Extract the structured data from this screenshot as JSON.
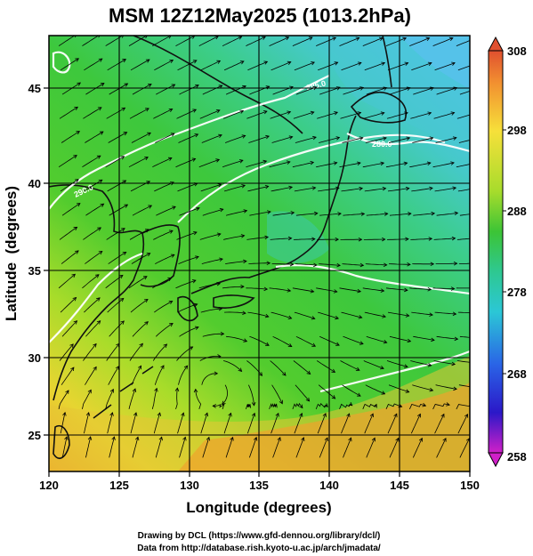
{
  "title": "MSM 12Z12May2025 (1013.2hPa)",
  "axes": {
    "xlabel": "Longitude (degrees)",
    "ylabel": "Latitude  (degrees)",
    "x_ticks": [
      "120",
      "125",
      "130",
      "135",
      "140",
      "145",
      "150"
    ],
    "y_ticks": [
      "25",
      "30",
      "35",
      "40",
      "45"
    ]
  },
  "colorbar": {
    "ticks": [
      "308",
      "298",
      "288",
      "278",
      "268",
      "258"
    ]
  },
  "credits": {
    "line1": "Drawing by DCL (https://www.gfd-dennou.org/library/dcl/)",
    "line2": "Data from http://database.rish.kyoto-u.ac.jp/arch/jmadata/"
  },
  "contour_labels": {
    "nw": "290.0",
    "ne": "280.0",
    "c": "285.0"
  },
  "colors": {
    "land_outline": "#111111",
    "isotherm": "#ffffff",
    "streamline": "#000000",
    "grid": "#000000"
  },
  "chart_data": {
    "type": "heatmap",
    "variable": "temperature (K) at 1013.2hPa with wind streamlines",
    "xlim": [
      120,
      150
    ],
    "ylim": [
      22.4,
      47.6
    ],
    "colorbar_range": [
      258,
      308
    ],
    "grid_lon": [
      125,
      130,
      135,
      140,
      145
    ],
    "grid_lat": [
      25,
      30,
      35,
      40,
      45
    ]
  }
}
